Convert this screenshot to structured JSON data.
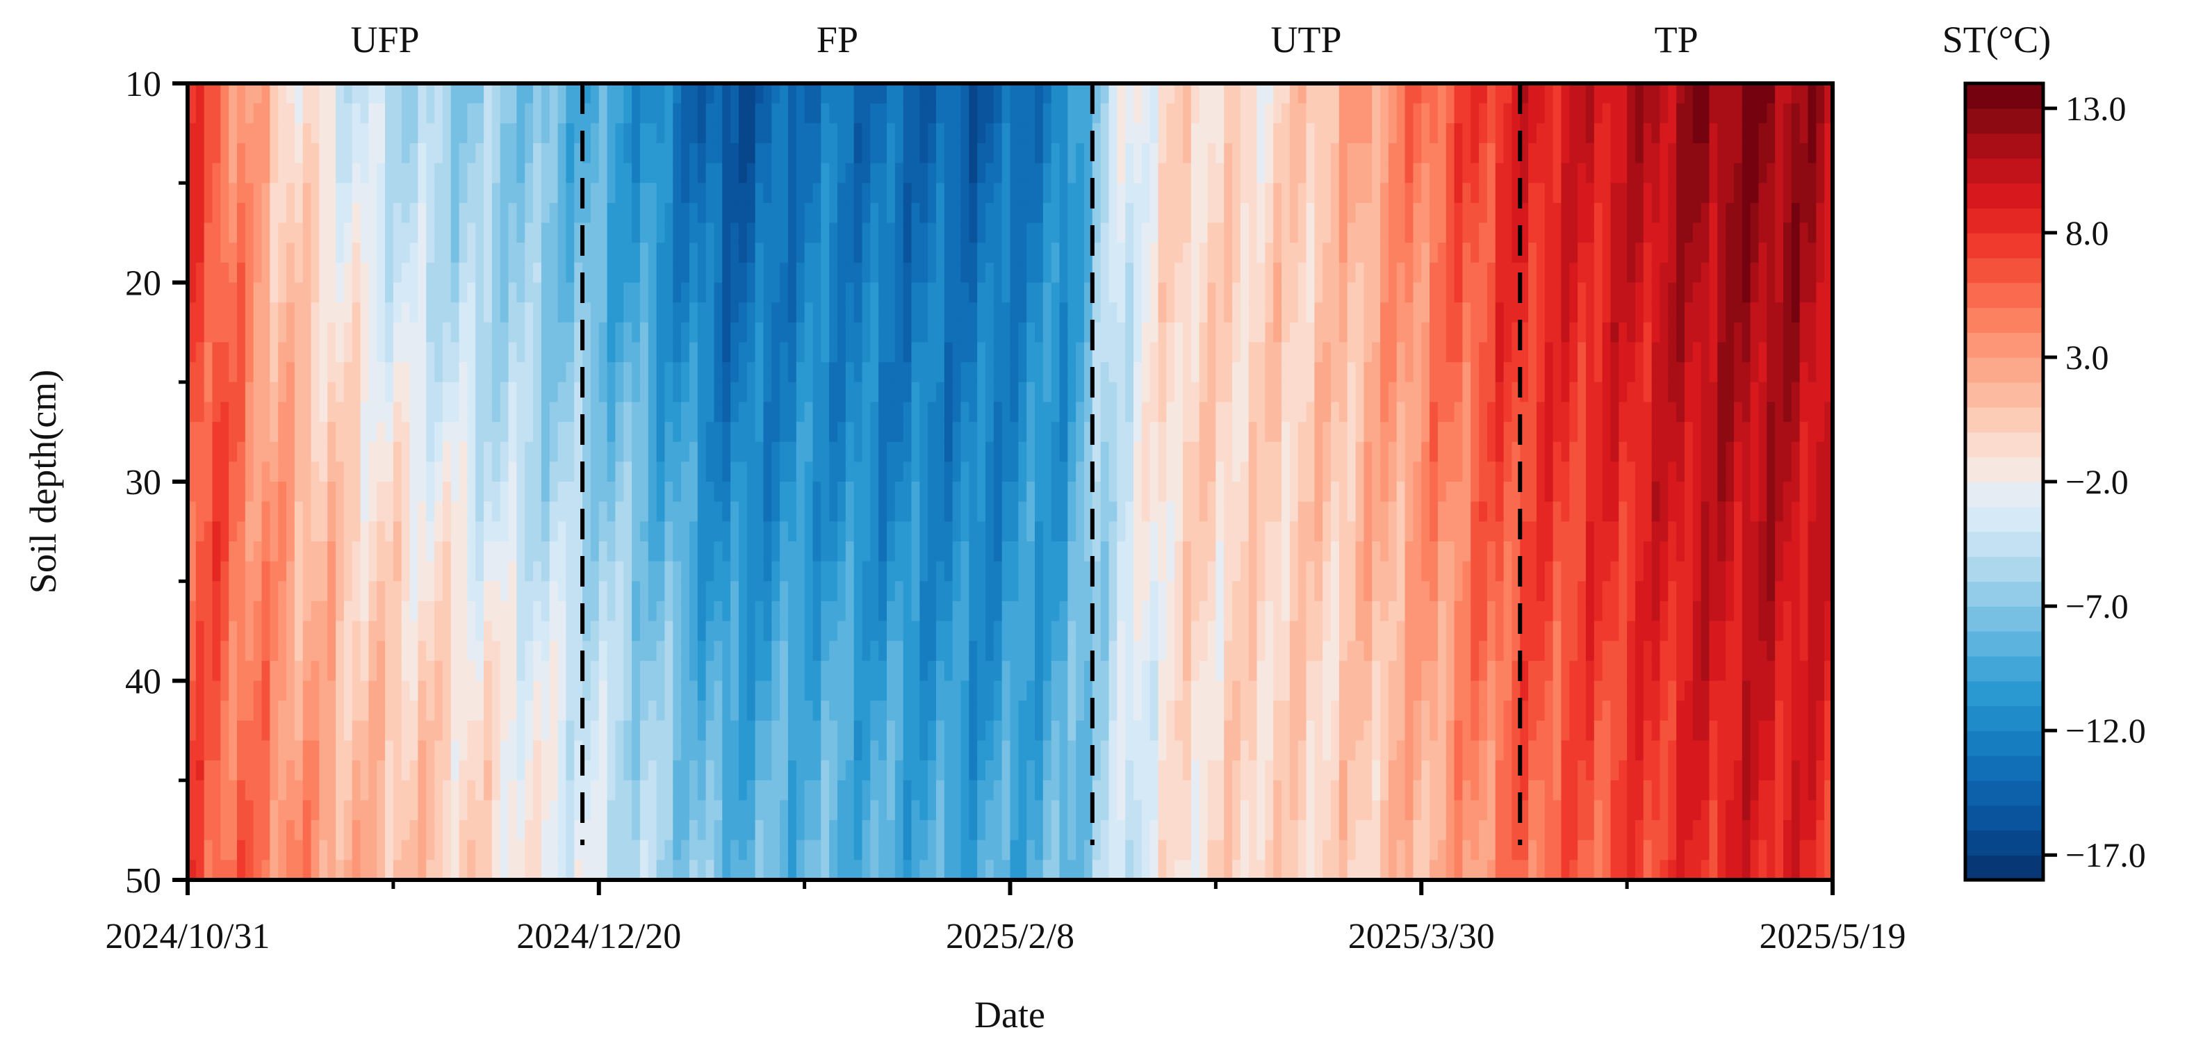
{
  "chart_data": {
    "type": "heatmap",
    "xlabel": "Date",
    "ylabel": "Soil depth(cm)",
    "x_tick_labels": [
      "2024/10/31",
      "2024/12/20",
      "2025/2/8",
      "2025/3/30",
      "2025/5/19"
    ],
    "x_range": [
      "2024-10-31",
      "2025-05-19"
    ],
    "y_tick_labels": [
      "10",
      "20",
      "30",
      "40",
      "50"
    ],
    "y_range": [
      10,
      50
    ],
    "y_reversed": true,
    "colorbar": {
      "title": "ST(°C)",
      "tick_labels": [
        "13.0",
        "8.0",
        "3.0",
        "−2.0",
        "−7.0",
        "−12.0",
        "−17.0"
      ],
      "tick_values": [
        13,
        8,
        3,
        -2,
        -7,
        -12,
        -17
      ],
      "range": [
        -18,
        14
      ],
      "levels": 32,
      "colors": [
        "#08306b",
        "#08468c",
        "#0b5aa6",
        "#1170b8",
        "#1a86c6",
        "#2b9bd3",
        "#52b0dc",
        "#7cc2e4",
        "#a6d4ec",
        "#c8e3f3",
        "#e2eef8",
        "#fbe5dc",
        "#fcd0bc",
        "#fcb69a",
        "#fc9979",
        "#fb7a5a",
        "#f6553e",
        "#ee3027",
        "#d8191e",
        "#b8101a",
        "#8f0a12",
        "#67000d"
      ]
    },
    "periods": [
      {
        "label": "UFP",
        "start": "2024-10-31",
        "end": "2024-12-18"
      },
      {
        "label": "FP",
        "start": "2024-12-18",
        "end": "2025-02-18"
      },
      {
        "label": "UTP",
        "start": "2025-02-18",
        "end": "2025-04-11"
      },
      {
        "label": "TP",
        "start": "2025-04-11",
        "end": "2025-05-19"
      }
    ],
    "period_boundaries": [
      "2024-12-18",
      "2025-02-18",
      "2025-04-11"
    ],
    "temperature_profile": {
      "dates": [
        "2024-10-31",
        "2024-11-03",
        "2024-11-10",
        "2024-11-20",
        "2024-11-30",
        "2024-12-10",
        "2024-12-18",
        "2024-12-25",
        "2025-01-05",
        "2025-01-15",
        "2025-01-25",
        "2025-02-05",
        "2025-02-15",
        "2025-02-20",
        "2025-02-28",
        "2025-03-10",
        "2025-03-20",
        "2025-04-01",
        "2025-04-10",
        "2025-04-20",
        "2025-05-01",
        "2025-05-10",
        "2025-05-19"
      ],
      "depths": [
        10,
        20,
        30,
        40,
        50
      ],
      "values_by_depth": [
        [
          8,
          6,
          1,
          -4,
          -6,
          -7,
          -9,
          -11,
          -16,
          -13,
          -14,
          -15,
          -12,
          -4,
          0,
          -1,
          2,
          6,
          9,
          10,
          12,
          13,
          11
        ],
        [
          7,
          7,
          2,
          -2,
          -5,
          -6,
          -8,
          -10,
          -14,
          -12,
          -13,
          -13,
          -11,
          -5,
          0,
          0,
          1,
          5,
          8,
          9,
          11,
          12,
          11
        ],
        [
          6,
          7,
          3,
          0,
          -2,
          -5,
          -6,
          -8,
          -12,
          -11,
          -12,
          -12,
          -10,
          -5,
          0,
          0,
          1,
          4,
          7,
          8,
          10,
          11,
          10
        ],
        [
          6,
          6,
          4,
          1,
          0,
          -2,
          -4,
          -6,
          -10,
          -9,
          -10,
          -11,
          -9,
          -5,
          -1,
          0,
          0,
          3,
          6,
          7,
          9,
          10,
          9
        ],
        [
          7,
          6,
          5,
          2,
          1,
          -1,
          -3,
          -5,
          -8,
          -8,
          -9,
          -9,
          -8,
          -5,
          -1,
          0,
          0,
          2,
          5,
          6,
          8,
          9,
          8
        ]
      ]
    }
  }
}
